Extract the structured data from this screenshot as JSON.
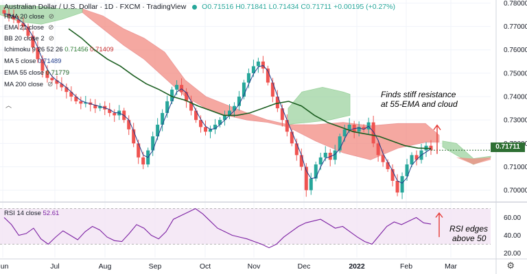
{
  "header": {
    "symbol": "Australian Dollar / U.S. Dollar · 1D · FXCM · TradingView",
    "o": "O0.71516",
    "h": "H0.71841",
    "l": "L0.71434",
    "c": "C0.71711",
    "change": "+0.00195 (+0.27%)"
  },
  "indicators": [
    {
      "label": "HMA 20 close",
      "value": ""
    },
    {
      "label": "EMA 21 close",
      "value": ""
    },
    {
      "label": "BB 20 close 2",
      "value": ""
    },
    {
      "label": "Ichimoku 9 26 52 26",
      "value": "0.71456",
      "value2": "0.71409"
    },
    {
      "label": "MA 5 close",
      "value": "0.71489"
    },
    {
      "label": "EMA 55 close",
      "value": "0.71779"
    },
    {
      "label": "MA 200 close",
      "value": ""
    }
  ],
  "rsi_legend": {
    "label": "RSI 14 close",
    "value": "52.61"
  },
  "annotations": {
    "price": [
      "Finds stiff resistance",
      "at 55-EMA and cloud"
    ],
    "rsi": [
      "RSI edges",
      "above 50"
    ]
  },
  "last_price_tag": "0.71711",
  "colors": {
    "up": "#26a69a",
    "down": "#ef5350",
    "ema55": "#1b5e20",
    "ma5": "#1e3a8a",
    "cloud_bear": "#f28b82",
    "cloud_bull": "#a5d6a7",
    "rsi": "#7b1fa2",
    "rsi_band": "#f3e5f5",
    "annotation_arrow": "#e53935"
  },
  "chart_data": [
    {
      "type": "candlestick",
      "title": "Australian Dollar / U.S. Dollar · 1D · FXCM",
      "x_ticks": [
        "Jun",
        "Jul",
        "Aug",
        "Sep",
        "Oct",
        "Nov",
        "Dec",
        "2022",
        "Feb",
        "Mar"
      ],
      "y_ticks": [
        "0.78000",
        "0.77000",
        "0.76000",
        "0.75000",
        "0.74000",
        "0.73000",
        "0.72000",
        "0.71000",
        "0.70000"
      ],
      "ylim": [
        0.6955,
        0.7813
      ],
      "close_path": [
        0.7755,
        0.7745,
        0.773,
        0.7715,
        0.77,
        0.766,
        0.761,
        0.756,
        0.751,
        0.748,
        0.747,
        0.7455,
        0.744,
        0.742,
        0.74,
        0.738,
        0.737,
        0.7375,
        0.7365,
        0.735,
        0.736,
        0.7345,
        0.733,
        0.732,
        0.734,
        0.73,
        0.726,
        0.72,
        0.714,
        0.711,
        0.717,
        0.723,
        0.728,
        0.733,
        0.738,
        0.743,
        0.745,
        0.742,
        0.738,
        0.734,
        0.73,
        0.727,
        0.725,
        0.726,
        0.728,
        0.73,
        0.732,
        0.734,
        0.736,
        0.74,
        0.746,
        0.75,
        0.753,
        0.755,
        0.752,
        0.746,
        0.74,
        0.735,
        0.73,
        0.725,
        0.72,
        0.715,
        0.71,
        0.7,
        0.705,
        0.711,
        0.714,
        0.716,
        0.713,
        0.717,
        0.723,
        0.726,
        0.728,
        0.725,
        0.727,
        0.726,
        0.729,
        0.72,
        0.715,
        0.712,
        0.709,
        0.704,
        0.699,
        0.706,
        0.711,
        0.715,
        0.713,
        0.717,
        0.719,
        0.7171
      ],
      "ema55": [
        0.769,
        0.765,
        0.76,
        0.756,
        0.753,
        0.749,
        0.7455,
        0.743,
        0.74,
        0.7385,
        0.736,
        0.734,
        0.732,
        0.732,
        0.733,
        0.735,
        0.737,
        0.738,
        0.736,
        0.732,
        0.729,
        0.727,
        0.725,
        0.724,
        0.723,
        0.721,
        0.719,
        0.718,
        0.7178
      ],
      "last_price": 0.71711
    },
    {
      "type": "line",
      "title": "RSI 14 close",
      "y_ticks": [
        "60.00",
        "40.00",
        "20.00"
      ],
      "ylim": [
        15,
        75
      ],
      "band": [
        30,
        70
      ],
      "values": [
        60,
        52,
        40,
        42,
        48,
        36,
        30,
        38,
        45,
        40,
        35,
        44,
        50,
        46,
        38,
        34,
        33,
        42,
        52,
        48,
        40,
        36,
        44,
        58,
        62,
        66,
        70,
        64,
        56,
        48,
        44,
        40,
        38,
        36,
        33,
        30,
        26,
        30,
        38,
        44,
        50,
        54,
        56,
        58,
        53,
        48,
        50,
        44,
        38,
        33,
        30,
        40,
        50,
        55,
        52,
        56,
        60,
        54,
        52.61
      ],
      "last_value": 52.61
    }
  ]
}
